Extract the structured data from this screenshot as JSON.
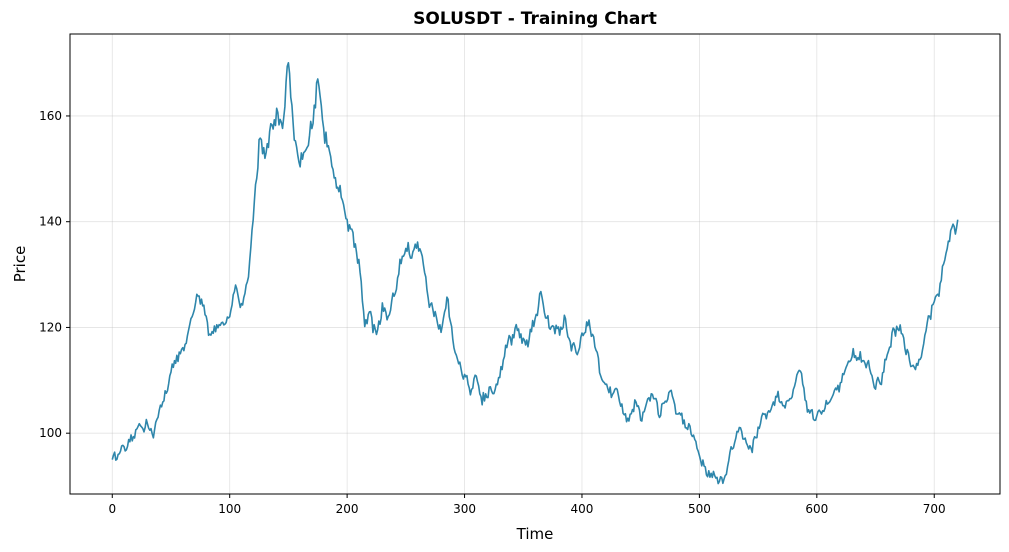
{
  "chart_data": {
    "type": "line",
    "title": "SOLUSDT - Training Chart",
    "xlabel": "Time",
    "ylabel": "Price",
    "xlim": [
      -36,
      756
    ],
    "ylim": [
      88.5,
      175.5
    ],
    "xticks": [
      0,
      100,
      200,
      300,
      400,
      500,
      600,
      700
    ],
    "yticks": [
      100,
      120,
      140,
      160
    ],
    "xtick_labels": [
      "0",
      "100",
      "200",
      "300",
      "400",
      "500",
      "600",
      "700"
    ],
    "ytick_labels": [
      "100",
      "120",
      "140",
      "160"
    ],
    "grid": true,
    "legend": "none",
    "line_color": "#2e86ab",
    "keypoints": [
      [
        0,
        95
      ],
      [
        5,
        96
      ],
      [
        10,
        97
      ],
      [
        15,
        98.5
      ],
      [
        20,
        100
      ],
      [
        25,
        101
      ],
      [
        30,
        102
      ],
      [
        35,
        99.5
      ],
      [
        40,
        105
      ],
      [
        45,
        107
      ],
      [
        50,
        112
      ],
      [
        55,
        114
      ],
      [
        60,
        116
      ],
      [
        65,
        119
      ],
      [
        70,
        124
      ],
      [
        75,
        126
      ],
      [
        80,
        121
      ],
      [
        85,
        118
      ],
      [
        90,
        121
      ],
      [
        95,
        120
      ],
      [
        100,
        122
      ],
      [
        105,
        128
      ],
      [
        110,
        124
      ],
      [
        115,
        128
      ],
      [
        120,
        140
      ],
      [
        125,
        155
      ],
      [
        130,
        152
      ],
      [
        135,
        157
      ],
      [
        140,
        160
      ],
      [
        145,
        158
      ],
      [
        150,
        170
      ],
      [
        155,
        155
      ],
      [
        160,
        151
      ],
      [
        165,
        154
      ],
      [
        170,
        158
      ],
      [
        175,
        167
      ],
      [
        180,
        157
      ],
      [
        185,
        153
      ],
      [
        190,
        147
      ],
      [
        195,
        146
      ],
      [
        200,
        140
      ],
      [
        205,
        137
      ],
      [
        210,
        132
      ],
      [
        215,
        121
      ],
      [
        220,
        122
      ],
      [
        225,
        118
      ],
      [
        230,
        124
      ],
      [
        235,
        122
      ],
      [
        240,
        126
      ],
      [
        245,
        132
      ],
      [
        250,
        136
      ],
      [
        255,
        133
      ],
      [
        260,
        136
      ],
      [
        265,
        132
      ],
      [
        270,
        125
      ],
      [
        275,
        122
      ],
      [
        280,
        119
      ],
      [
        285,
        126
      ],
      [
        290,
        118
      ],
      [
        295,
        113
      ],
      [
        300,
        111
      ],
      [
        305,
        108
      ],
      [
        310,
        110
      ],
      [
        315,
        106
      ],
      [
        320,
        108
      ],
      [
        325,
        108
      ],
      [
        330,
        111
      ],
      [
        335,
        116
      ],
      [
        340,
        118
      ],
      [
        345,
        120
      ],
      [
        350,
        117
      ],
      [
        355,
        118
      ],
      [
        360,
        121
      ],
      [
        365,
        127
      ],
      [
        370,
        121
      ],
      [
        375,
        120
      ],
      [
        380,
        119
      ],
      [
        385,
        121
      ],
      [
        390,
        117
      ],
      [
        395,
        115
      ],
      [
        400,
        118
      ],
      [
        405,
        121
      ],
      [
        410,
        118
      ],
      [
        415,
        112
      ],
      [
        420,
        109
      ],
      [
        425,
        108
      ],
      [
        430,
        108
      ],
      [
        435,
        104
      ],
      [
        440,
        102
      ],
      [
        445,
        106
      ],
      [
        450,
        103
      ],
      [
        455,
        105
      ],
      [
        460,
        108
      ],
      [
        465,
        104
      ],
      [
        470,
        105
      ],
      [
        475,
        108
      ],
      [
        480,
        104
      ],
      [
        485,
        103
      ],
      [
        490,
        101
      ],
      [
        495,
        100
      ],
      [
        500,
        96
      ],
      [
        505,
        93
      ],
      [
        510,
        92
      ],
      [
        515,
        91.5
      ],
      [
        520,
        90.5
      ],
      [
        525,
        95
      ],
      [
        530,
        99
      ],
      [
        535,
        101
      ],
      [
        540,
        98
      ],
      [
        545,
        97
      ],
      [
        550,
        101
      ],
      [
        555,
        103
      ],
      [
        560,
        104
      ],
      [
        565,
        107
      ],
      [
        570,
        106
      ],
      [
        575,
        105
      ],
      [
        580,
        108
      ],
      [
        585,
        113
      ],
      [
        590,
        106
      ],
      [
        595,
        104
      ],
      [
        600,
        103
      ],
      [
        605,
        104
      ],
      [
        610,
        106
      ],
      [
        615,
        107
      ],
      [
        620,
        109
      ],
      [
        625,
        112
      ],
      [
        630,
        115
      ],
      [
        635,
        114
      ],
      [
        640,
        114
      ],
      [
        645,
        112
      ],
      [
        650,
        109
      ],
      [
        655,
        110
      ],
      [
        660,
        115
      ],
      [
        665,
        119
      ],
      [
        670,
        120
      ],
      [
        675,
        117
      ],
      [
        680,
        113
      ],
      [
        685,
        112
      ],
      [
        690,
        116
      ],
      [
        695,
        122
      ],
      [
        700,
        124
      ],
      [
        705,
        128
      ],
      [
        710,
        134
      ],
      [
        715,
        139
      ],
      [
        720,
        139
      ]
    ]
  }
}
